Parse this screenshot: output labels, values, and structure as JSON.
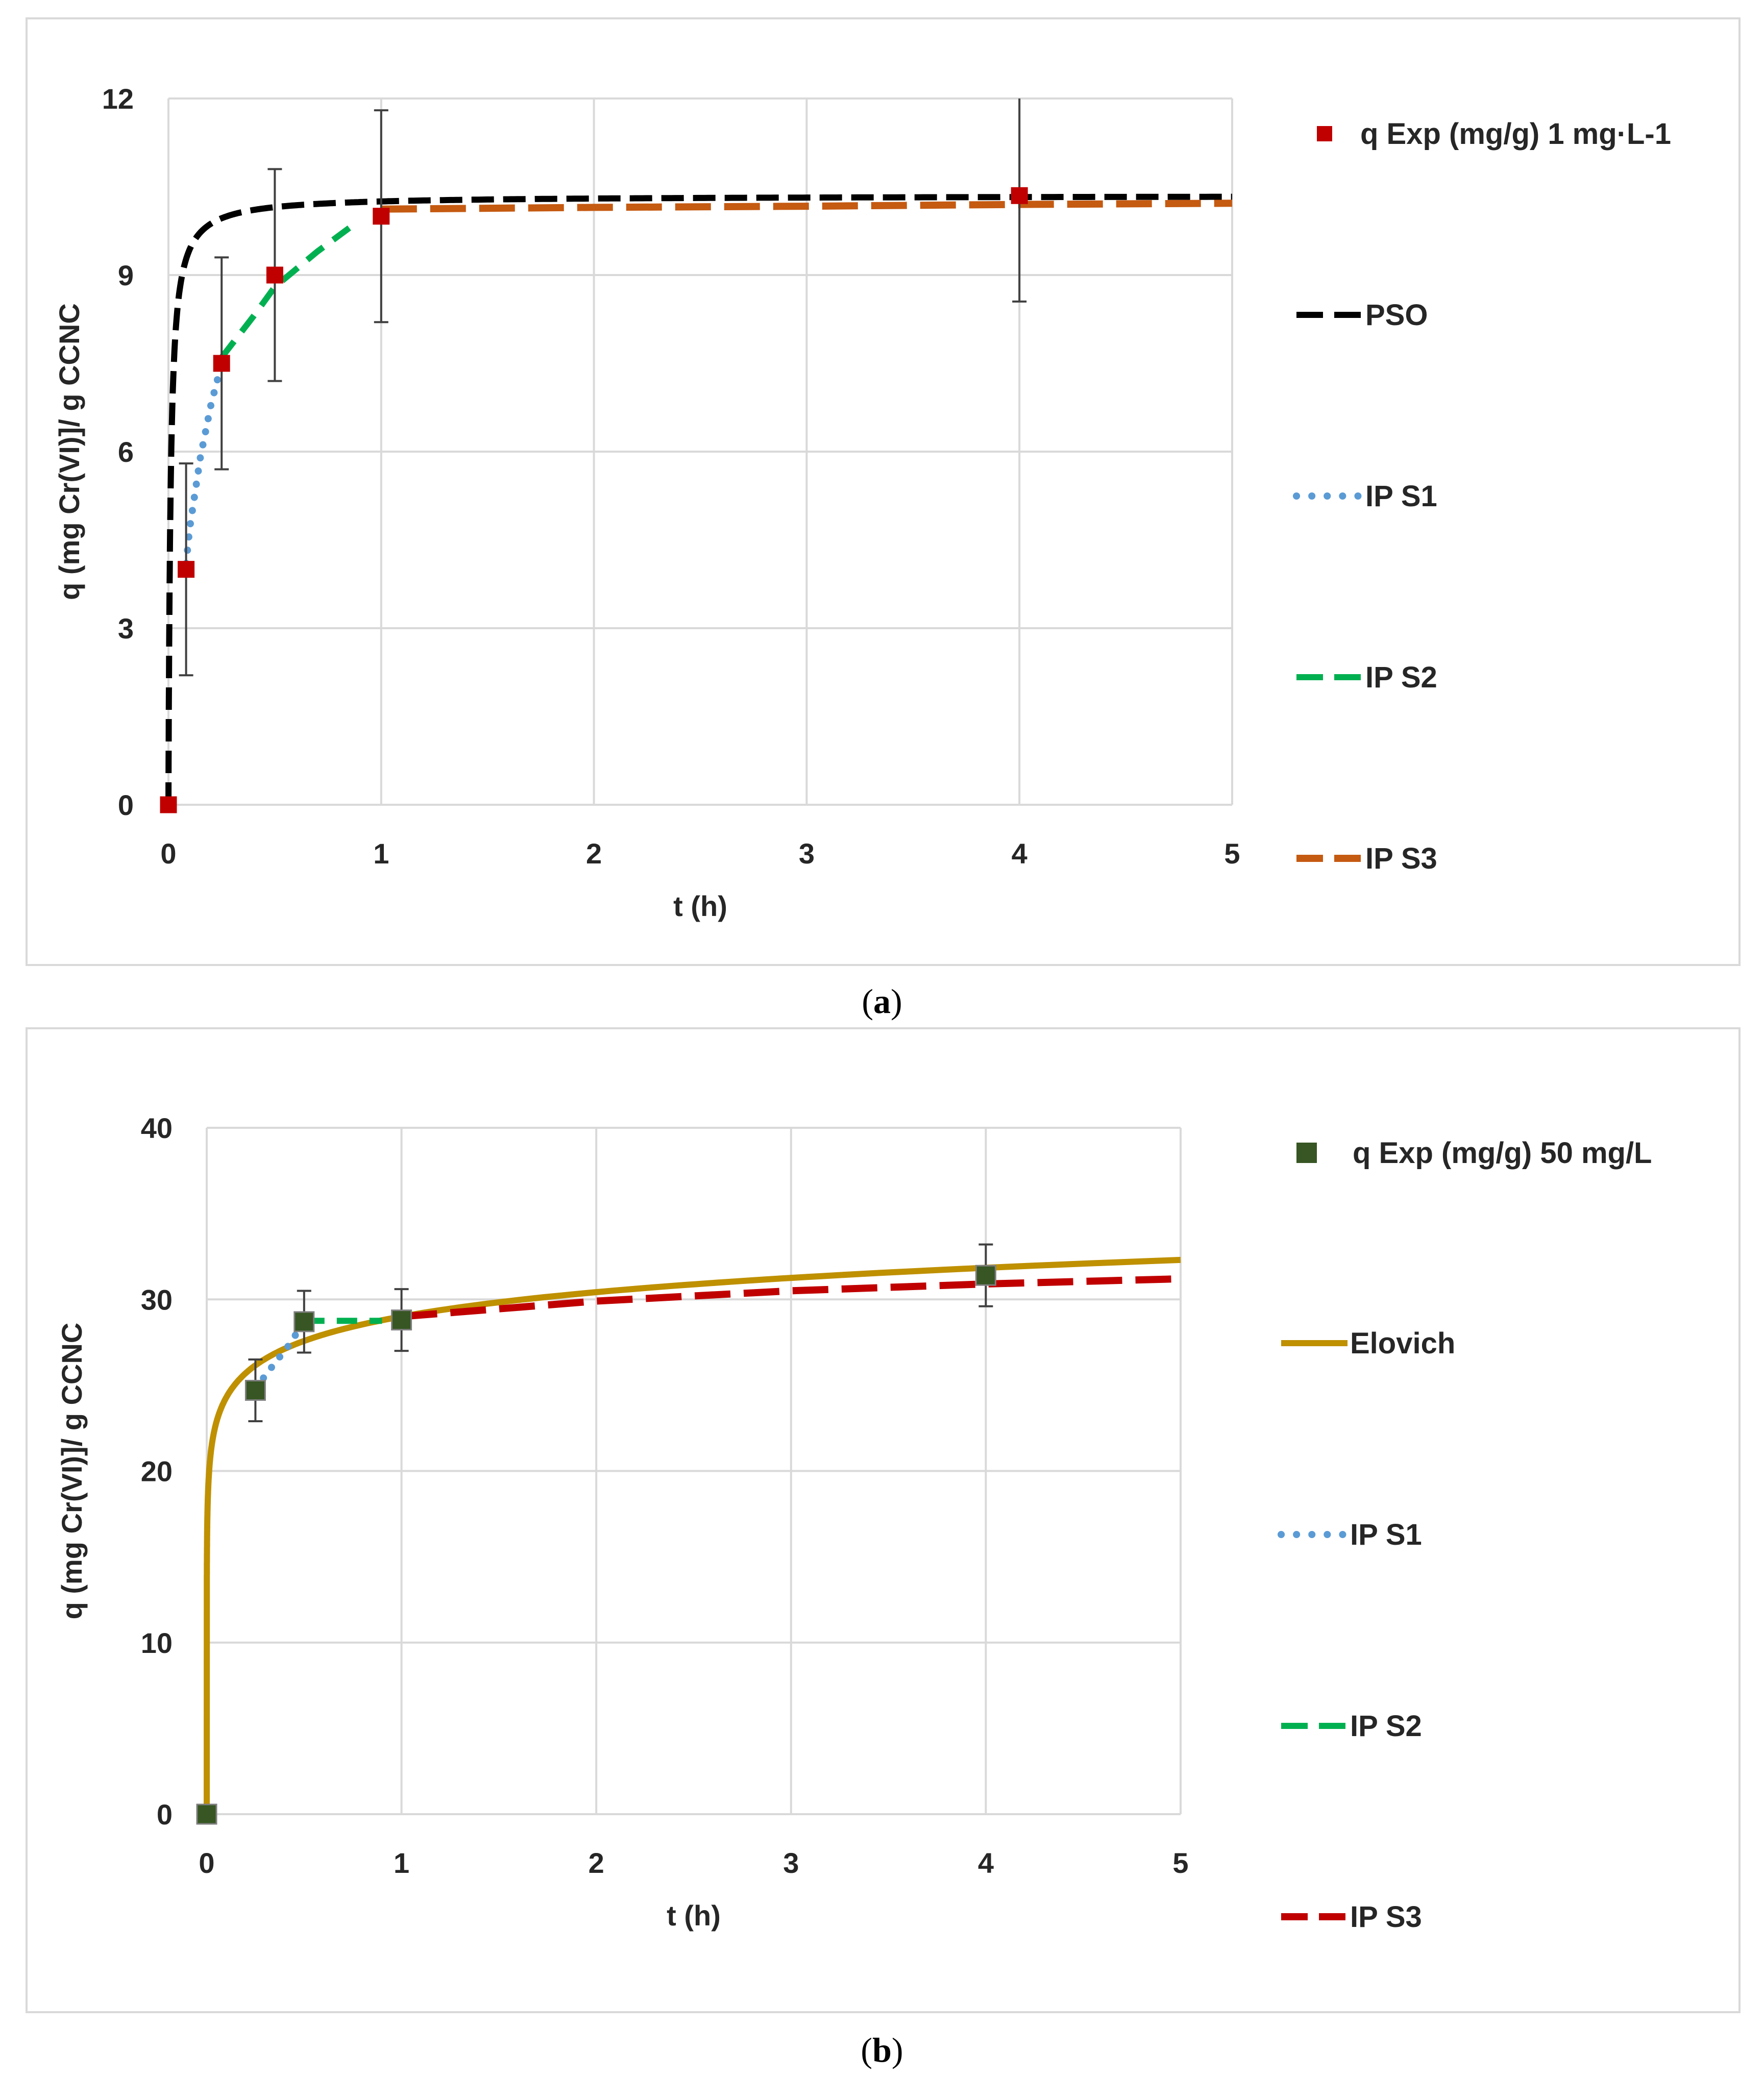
{
  "chart_data": [
    {
      "type": "scatter",
      "caption_letter": "a",
      "xlabel": "t (h)",
      "ylabel": "q (mg Cr(VI)]/ g CCNC",
      "xlim": [
        0,
        5
      ],
      "ylim": [
        0,
        12
      ],
      "xticks": [
        "0",
        "1",
        "2",
        "3",
        "4",
        "5"
      ],
      "yticks": [
        "0",
        "3",
        "6",
        "9",
        "12"
      ],
      "x_tick_values": [
        0,
        1,
        2,
        3,
        4,
        5
      ],
      "y_tick_values": [
        0,
        3,
        6,
        9,
        12
      ],
      "grid": true,
      "legend_position": "right",
      "series": [
        {
          "name": "q Exp (mg/g) 1 mg·L-1",
          "kind": "points",
          "color": "#c00000",
          "x": [
            0,
            0.083,
            0.25,
            0.5,
            1,
            4
          ],
          "y": [
            0,
            4.0,
            7.5,
            9.0,
            10.0,
            10.35
          ],
          "err": [
            0,
            1.8,
            1.8,
            1.8,
            1.8,
            1.8
          ]
        },
        {
          "name": "PSO",
          "kind": "line",
          "style": "dashed",
          "color": "#000000",
          "model": "pso",
          "qe": 10.35,
          "k": 10.0,
          "from": 0,
          "to": 5
        },
        {
          "name": "IP S1",
          "kind": "line",
          "style": "dotted",
          "color": "#5b9bd5",
          "x": [
            0.083,
            0.1,
            0.15,
            0.2,
            0.25
          ],
          "y": [
            4.1,
            4.7,
            5.9,
            6.8,
            7.5
          ]
        },
        {
          "name": "IP S2",
          "kind": "line",
          "style": "dashdot",
          "color": "#00b050",
          "x": [
            0.25,
            0.4,
            0.5,
            0.7,
            0.85
          ],
          "y": [
            7.6,
            8.3,
            8.8,
            9.4,
            9.8
          ]
        },
        {
          "name": "IP S3",
          "kind": "line",
          "style": "longdash",
          "color": "#c55a11",
          "x": [
            1,
            2,
            3,
            4,
            5
          ],
          "y": [
            10.12,
            10.15,
            10.17,
            10.2,
            10.22
          ]
        }
      ]
    },
    {
      "type": "scatter",
      "caption_letter": "b",
      "xlabel": "t (h)",
      "ylabel": "q (mg Cr(VI)]/ g CCNC",
      "xlim": [
        0,
        5
      ],
      "ylim": [
        0,
        40
      ],
      "xticks": [
        "0",
        "1",
        "2",
        "3",
        "4",
        "5"
      ],
      "yticks": [
        "0",
        "10",
        "20",
        "30",
        "40"
      ],
      "x_tick_values": [
        0,
        1,
        2,
        3,
        4,
        5
      ],
      "y_tick_values": [
        0,
        10,
        20,
        30,
        40
      ],
      "grid": true,
      "legend_position": "right",
      "series": [
        {
          "name": "q Exp (mg/g) 50 mg/L",
          "kind": "points",
          "color": "#375623",
          "x": [
            0,
            0.25,
            0.5,
            1,
            4
          ],
          "y": [
            0,
            24.7,
            28.7,
            28.8,
            31.4
          ],
          "err": [
            0,
            1.8,
            1.8,
            1.8,
            1.8
          ]
        },
        {
          "name": "Elovich",
          "kind": "line",
          "style": "solid",
          "color": "#bf9000",
          "model": "elovich",
          "a": 29.0,
          "b": 2.05,
          "from": 0.0005,
          "to": 5
        },
        {
          "name": "IP S1",
          "kind": "line",
          "style": "dotted",
          "color": "#5b9bd5",
          "x": [
            0.25,
            0.33,
            0.42,
            0.5
          ],
          "y": [
            24.8,
            26.0,
            27.3,
            28.7
          ]
        },
        {
          "name": "IP S2",
          "kind": "line",
          "style": "dashdot",
          "color": "#00b050",
          "x": [
            0.5,
            0.6,
            0.7,
            0.8,
            0.9
          ],
          "y": [
            28.75,
            28.75,
            28.75,
            28.75,
            28.75
          ]
        },
        {
          "name": "IP S3",
          "kind": "line",
          "style": "longdash",
          "color": "#c00000",
          "x": [
            1,
            2,
            3,
            4,
            5
          ],
          "y": [
            29.0,
            29.9,
            30.5,
            30.9,
            31.2
          ]
        }
      ]
    }
  ]
}
